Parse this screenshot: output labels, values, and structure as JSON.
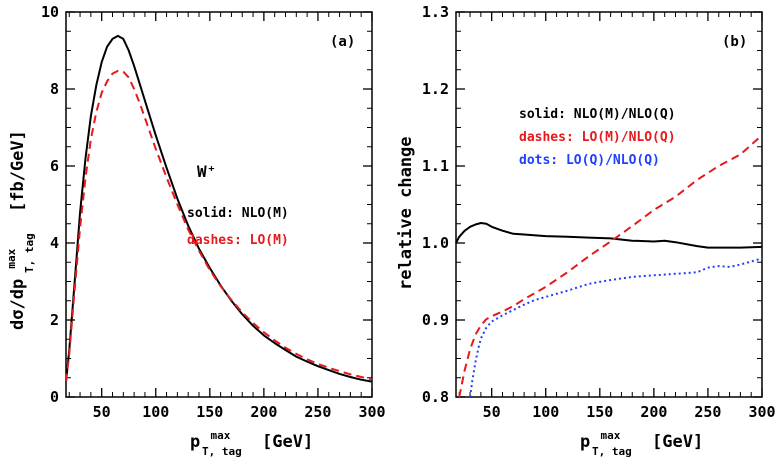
{
  "chart_data": [
    {
      "type": "line",
      "panel_label": "(a)",
      "annotation": "W⁺",
      "ylabel": "dσ/dp^max_T, tag [fb/GeV]",
      "ylabel_parts": {
        "main": "dσ/dp",
        "sup": "max",
        "sub": "T, tag",
        "unit": "[fb/GeV]"
      },
      "xlabel": "p^max_T, tag [GeV]",
      "xlabel_parts": {
        "main": "p",
        "sup": "max",
        "sub": "T, tag",
        "unit": "[GeV]"
      },
      "xlim": [
        17,
        300
      ],
      "ylim": [
        0,
        10
      ],
      "xticks": [
        "50",
        "100",
        "150",
        "200",
        "250",
        "300"
      ],
      "yticks": [
        "0",
        "2",
        "4",
        "6",
        "8",
        "10"
      ],
      "legend_text": [
        "solid: NLO(M)",
        "dashes: LO(M)"
      ],
      "series": [
        {
          "name": "NLO(M)",
          "style": "solid",
          "color": "#000000",
          "x": [
            17,
            20,
            25,
            30,
            35,
            40,
            45,
            50,
            55,
            60,
            65,
            70,
            75,
            80,
            85,
            90,
            100,
            110,
            120,
            130,
            140,
            150,
            160,
            170,
            180,
            190,
            200,
            210,
            220,
            230,
            240,
            250,
            260,
            270,
            280,
            290,
            300
          ],
          "y": [
            0.4,
            1.2,
            3.0,
            4.8,
            6.2,
            7.3,
            8.1,
            8.7,
            9.1,
            9.3,
            9.38,
            9.3,
            9.0,
            8.6,
            8.15,
            7.7,
            6.8,
            5.95,
            5.15,
            4.45,
            3.85,
            3.35,
            2.9,
            2.5,
            2.15,
            1.85,
            1.6,
            1.4,
            1.22,
            1.05,
            0.92,
            0.8,
            0.7,
            0.6,
            0.52,
            0.45,
            0.4
          ]
        },
        {
          "name": "LO(M)",
          "style": "dashed",
          "color": "#e41a1c",
          "x": [
            17,
            20,
            25,
            30,
            35,
            40,
            45,
            50,
            55,
            60,
            65,
            70,
            75,
            80,
            85,
            90,
            100,
            110,
            120,
            130,
            140,
            150,
            160,
            170,
            180,
            190,
            200,
            210,
            220,
            230,
            240,
            250,
            260,
            270,
            280,
            290,
            300
          ],
          "y": [
            0.4,
            1.1,
            2.8,
            4.4,
            5.7,
            6.7,
            7.4,
            7.9,
            8.2,
            8.4,
            8.47,
            8.45,
            8.3,
            8.0,
            7.65,
            7.25,
            6.45,
            5.7,
            5.0,
            4.35,
            3.8,
            3.3,
            2.88,
            2.52,
            2.2,
            1.92,
            1.68,
            1.47,
            1.28,
            1.12,
            0.98,
            0.86,
            0.76,
            0.67,
            0.59,
            0.52,
            0.46
          ]
        }
      ]
    },
    {
      "type": "line",
      "panel_label": "(b)",
      "ylabel": "relative change",
      "xlabel": "p^max_T, tag [GeV]",
      "xlabel_parts": {
        "main": "p",
        "sup": "max",
        "sub": "T, tag",
        "unit": "[GeV]"
      },
      "xlim": [
        17,
        300
      ],
      "ylim": [
        0.8,
        1.3
      ],
      "xticks": [
        "50",
        "100",
        "150",
        "200",
        "250",
        "300"
      ],
      "yticks": [
        "0.8",
        "0.9",
        "1.0",
        "1.1",
        "1.2",
        "1.3"
      ],
      "legend_text": [
        "solid: NLO(M)/NLO(Q)",
        "dashes: LO(M)/NLO(Q)",
        "dots: LO(Q)/NLO(Q)"
      ],
      "series": [
        {
          "name": "NLO(M)/NLO(Q)",
          "style": "solid",
          "color": "#000000",
          "x": [
            17,
            20,
            25,
            30,
            35,
            40,
            45,
            50,
            60,
            70,
            80,
            100,
            120,
            140,
            160,
            180,
            200,
            210,
            220,
            240,
            250,
            260,
            280,
            300
          ],
          "y": [
            1.0,
            1.008,
            1.016,
            1.021,
            1.024,
            1.026,
            1.025,
            1.021,
            1.016,
            1.012,
            1.011,
            1.009,
            1.008,
            1.007,
            1.006,
            1.003,
            1.002,
            1.003,
            1.001,
            0.996,
            0.994,
            0.994,
            0.994,
            0.995
          ]
        },
        {
          "name": "LO(M)/NLO(Q)",
          "style": "dashed",
          "color": "#e41a1c",
          "x": [
            20,
            25,
            30,
            35,
            40,
            45,
            50,
            60,
            70,
            80,
            90,
            100,
            120,
            140,
            160,
            180,
            200,
            220,
            240,
            260,
            280,
            300
          ],
          "y": [
            0.797,
            0.835,
            0.862,
            0.881,
            0.893,
            0.901,
            0.905,
            0.911,
            0.918,
            0.927,
            0.935,
            0.943,
            0.962,
            0.983,
            1.002,
            1.022,
            1.043,
            1.06,
            1.082,
            1.1,
            1.115,
            1.14
          ]
        },
        {
          "name": "LO(Q)/NLO(Q)",
          "style": "dotted",
          "color": "#1f3fff",
          "x": [
            30,
            32,
            35,
            38,
            40,
            45,
            50,
            60,
            70,
            80,
            90,
            100,
            120,
            140,
            160,
            180,
            200,
            220,
            240,
            250,
            260,
            270,
            280,
            300
          ],
          "y": [
            0.797,
            0.82,
            0.846,
            0.865,
            0.876,
            0.89,
            0.898,
            0.906,
            0.913,
            0.92,
            0.926,
            0.93,
            0.938,
            0.947,
            0.952,
            0.956,
            0.958,
            0.96,
            0.962,
            0.968,
            0.97,
            0.969,
            0.972,
            0.98
          ]
        }
      ]
    }
  ],
  "colors": {
    "black": "#000000",
    "red": "#e41a1c",
    "blue": "#1f3fff"
  }
}
